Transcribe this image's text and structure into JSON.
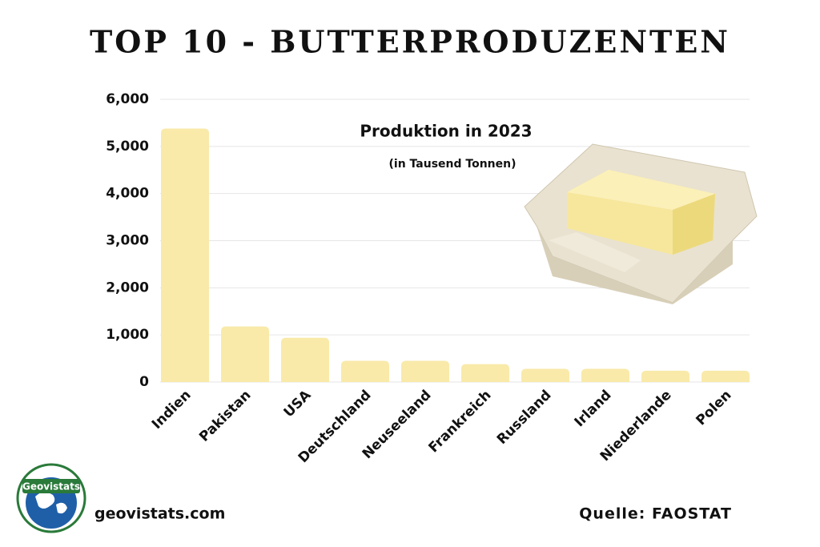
{
  "chart_data": {
    "type": "bar",
    "title": "TOP 10 - BUTTERPRODUZENTEN",
    "subtitle": "Produktion in 2023",
    "unit_note": "(in Tausend Tonnen)",
    "categories": [
      "Indien",
      "Pakistan",
      "USA",
      "Deutschland",
      "Neuseeland",
      "Frankreich",
      "Russland",
      "Irland",
      "Niederlande",
      "Polen"
    ],
    "values": [
      5380,
      1180,
      940,
      450,
      450,
      380,
      280,
      280,
      240,
      240
    ],
    "color": "#f9eaaa",
    "ylim": [
      0,
      6000
    ],
    "yticks": [
      0,
      {
        "value": 1000,
        "label": "1,000"
      },
      {
        "value": 2000,
        "label": "2,000"
      },
      {
        "value": 3000,
        "label": "3,000"
      },
      {
        "value": 4000,
        "label": "4,000"
      },
      {
        "value": 5000,
        "label": "5,000"
      },
      {
        "value": 6000,
        "label": "6,000"
      }
    ],
    "grid": true,
    "logo_text": "Geovistats",
    "website": "geovistats.com",
    "source": "Quelle: FAOSTAT"
  }
}
